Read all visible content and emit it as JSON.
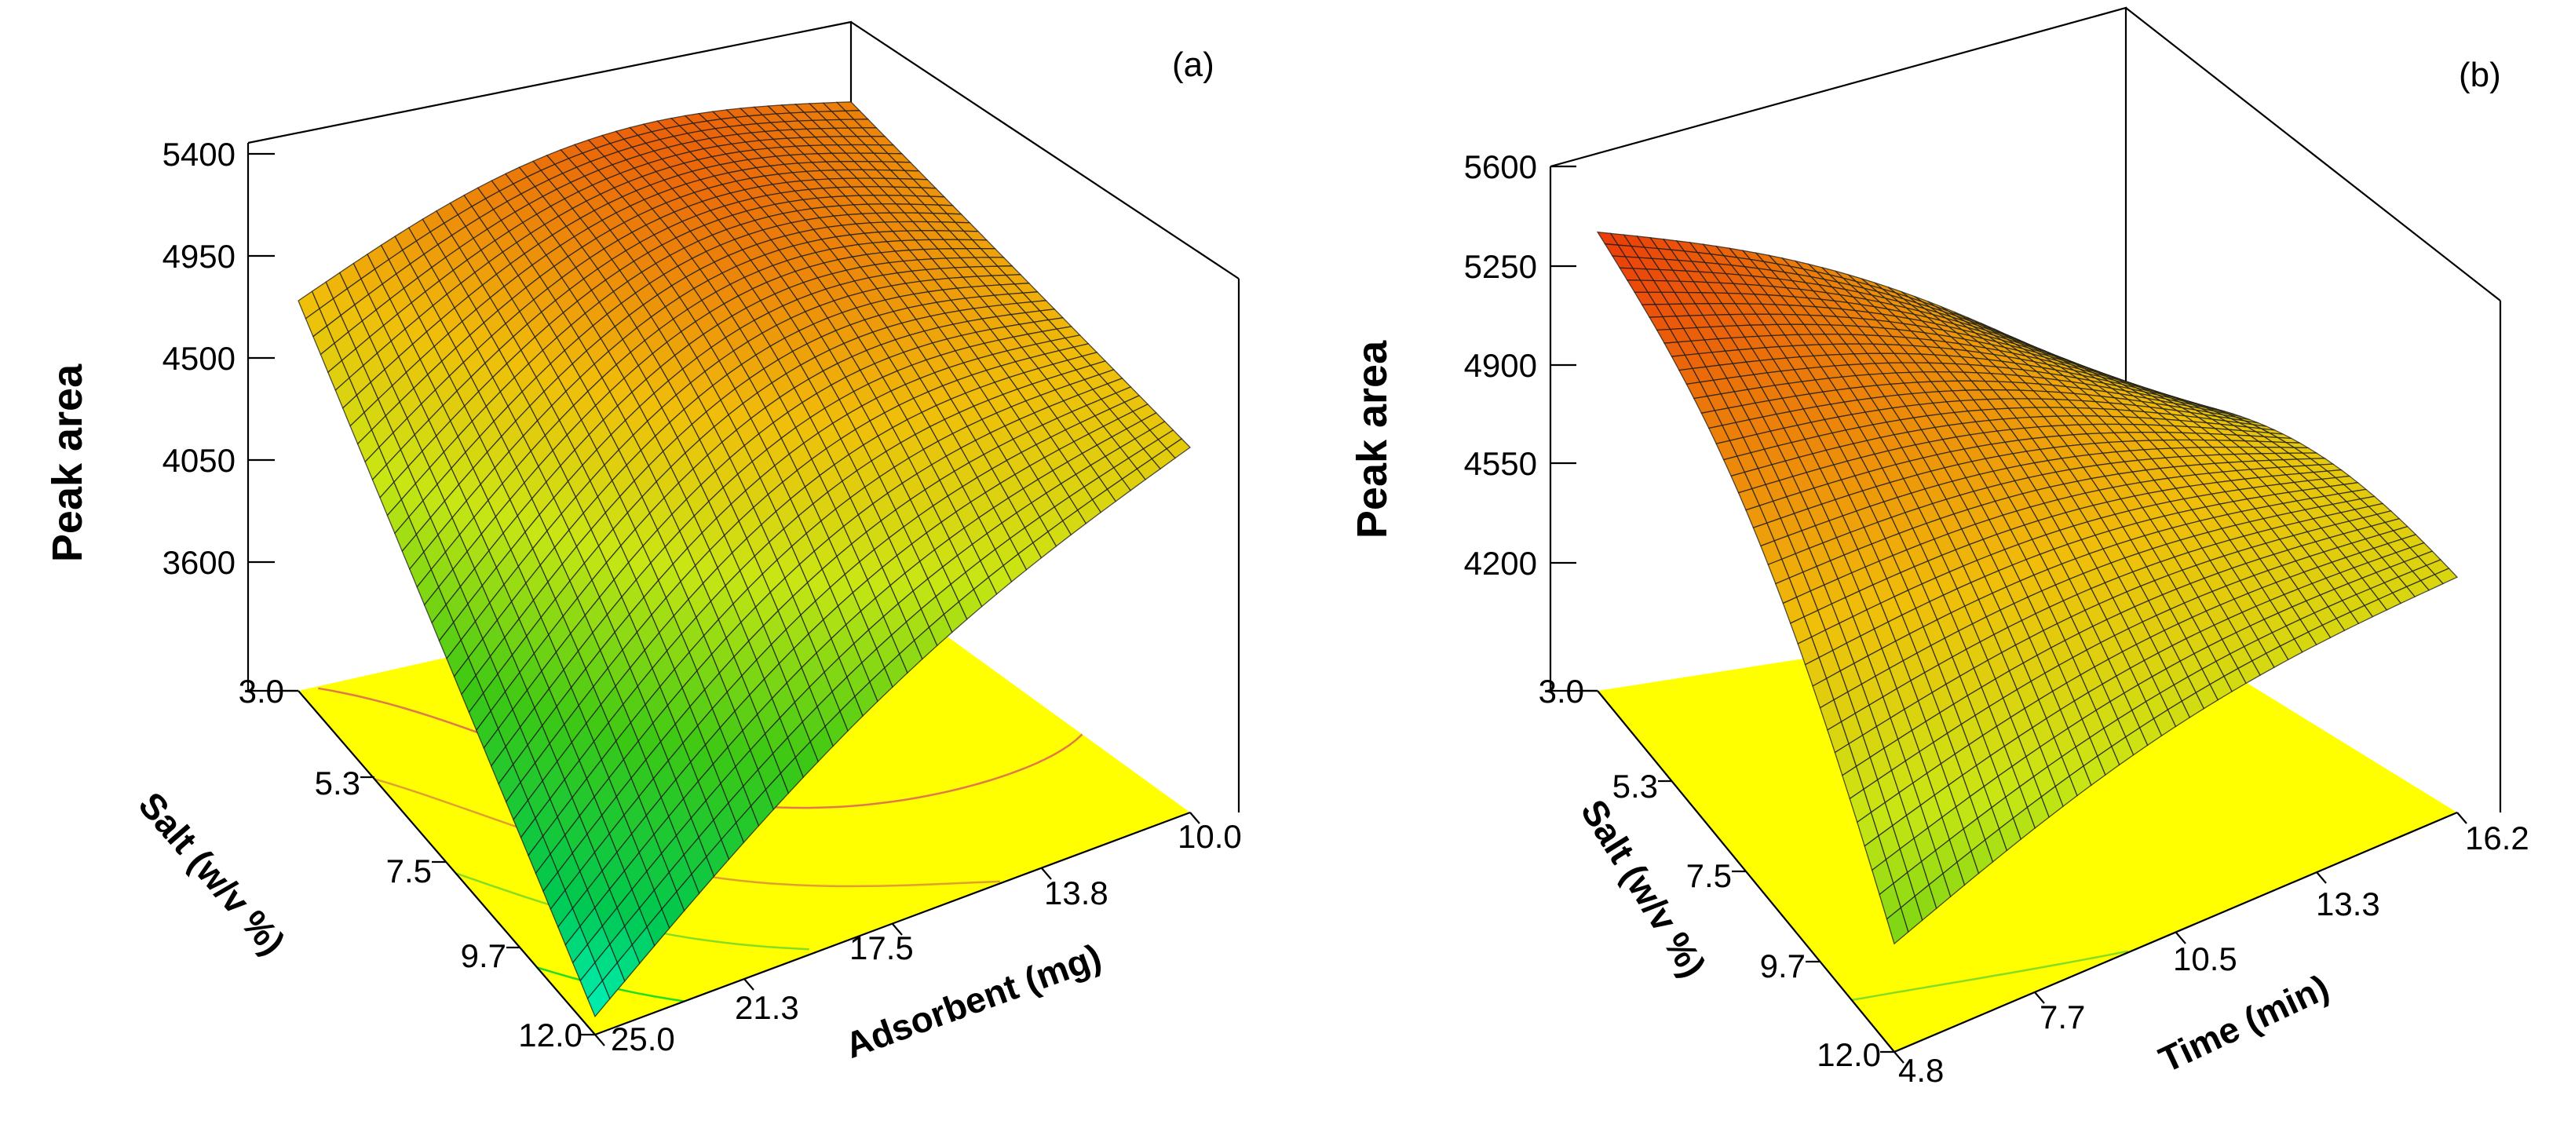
{
  "figure": {
    "description_labels": [
      "(a)",
      "(b)"
    ]
  },
  "chart_data": [
    {
      "type": "surface3d",
      "panel_label": "(a)",
      "zlabel": "Peak area",
      "xlabel": "Adsorbent (mg)",
      "ylabel": "Salt (w/v %)",
      "x_ticks": [
        "10.0",
        "13.8",
        "17.5",
        "21.3",
        "25.0"
      ],
      "y_ticks": [
        "3.0",
        "5.3",
        "7.5",
        "9.7",
        "12.0"
      ],
      "z_ticks": [
        "3600",
        "4050",
        "4500",
        "4950",
        "5400"
      ],
      "xlim": [
        10.0,
        25.0
      ],
      "ylim": [
        3.0,
        12.0
      ],
      "zlim": [
        3200,
        5400
      ],
      "corner_values": {
        "x10_y3": 4810,
        "x25_y3": 4920,
        "x10_y12": 4470,
        "x25_y12": 3280
      },
      "peak_value": 5300,
      "color_range": [
        3200,
        5600
      ],
      "floor_color": "#ffff00",
      "contour_levels": [
        3600,
        4050,
        4500,
        4950
      ],
      "contour_colors": [
        "#22dd22",
        "#88dd22",
        "#e0a030",
        "#e07a4a"
      ]
    },
    {
      "type": "surface3d",
      "panel_label": "(b)",
      "zlabel": "Peak area",
      "xlabel": "Time (min)",
      "ylabel": "Salt (w/v %)",
      "x_ticks": [
        "4.8",
        "7.7",
        "10.5",
        "13.3",
        "16.2"
      ],
      "y_ticks": [
        "3.0",
        "5.3",
        "7.5",
        "9.7",
        "12.0"
      ],
      "z_ticks": [
        "4200",
        "4550",
        "4900",
        "5250",
        "5600"
      ],
      "xlim": [
        4.8,
        16.2
      ],
      "ylim": [
        3.0,
        12.0
      ],
      "zlim": [
        3900,
        5600
      ],
      "corner_values": {
        "x4.8_y3": 5500,
        "x16.2_y3": 4870,
        "x4.8_y12": 4780,
        "x16.2_y12": 3990
      },
      "color_range": [
        3200,
        5600
      ],
      "floor_color": "#ffff00",
      "contour_levels": [
        4200,
        4550
      ],
      "contour_colors": [
        "#22dd22",
        "#88dd22"
      ]
    }
  ]
}
